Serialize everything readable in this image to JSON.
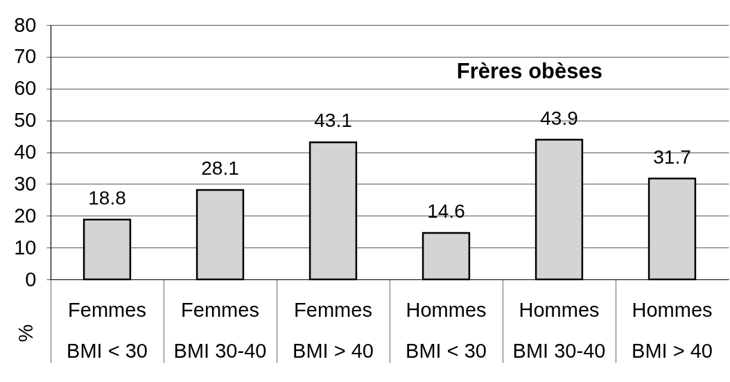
{
  "chart_data": {
    "type": "bar",
    "title": "Frères obèses",
    "ylabel": "%",
    "categories": [
      "Femmes\nBMI < 30",
      "Femmes\nBMI 30-40",
      "Femmes\nBMI > 40",
      "Hommes\nBMI < 30",
      "Hommes\nBMI 30-40",
      "Hommes\nBMI > 40"
    ],
    "values": [
      18.8,
      28.1,
      43.1,
      14.6,
      43.9,
      31.7
    ],
    "color": "#d4d4d4",
    "ylim": [
      0,
      80
    ],
    "yticks": [
      0,
      10,
      20,
      30,
      40,
      50,
      60,
      70,
      80
    ],
    "grid": "y",
    "data_labels": true
  }
}
